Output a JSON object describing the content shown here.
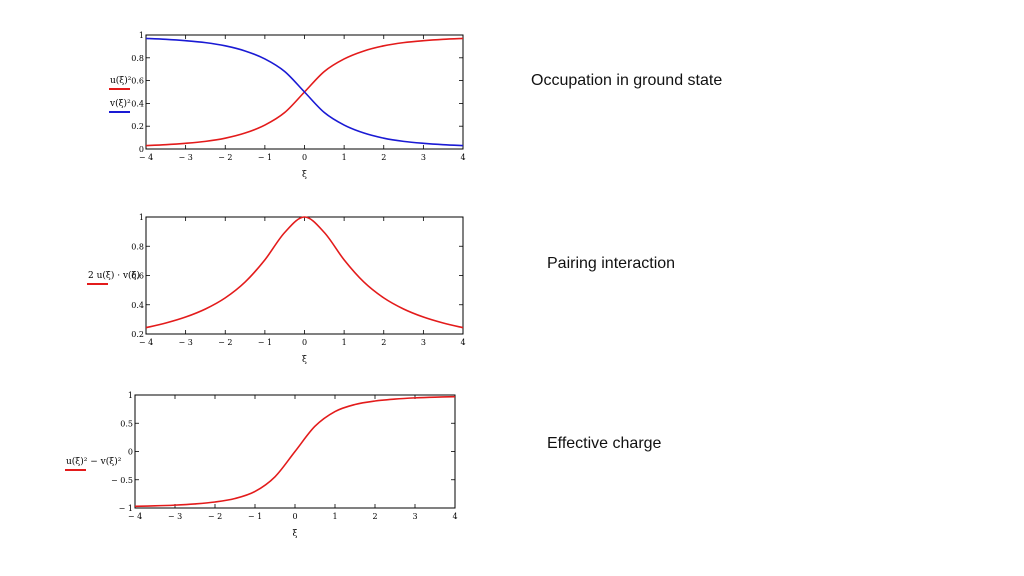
{
  "captions": {
    "chart1": "Occupation in ground state",
    "chart2": "Pairing interaction",
    "chart3": "Effective charge"
  },
  "colors": {
    "red": "#e31b1b",
    "blue": "#1a1ad4"
  },
  "chart_data": [
    {
      "type": "line",
      "title": "",
      "xlabel": "ξ",
      "ylabel_lines": [
        "u(ξ)²",
        "v(ξ)²"
      ],
      "xlim": [
        -4,
        4
      ],
      "ylim": [
        0,
        1
      ],
      "x_ticks": [
        -4,
        -3,
        -2,
        -1,
        0,
        1,
        2,
        3,
        4
      ],
      "x_tick_labels": [
        "− 4",
        "− 3",
        "− 2",
        "− 1",
        "0",
        "1",
        "2",
        "3",
        "4"
      ],
      "y_ticks": [
        0,
        0.2,
        0.4,
        0.6,
        0.8,
        1
      ],
      "y_tick_labels": [
        "0",
        "0.2",
        "0.4",
        "0.6",
        "0.8",
        "1"
      ],
      "series": [
        {
          "name": "u(ξ)²",
          "color": "red",
          "x": [
            -4,
            -3.5,
            -3,
            -2.5,
            -2,
            -1.5,
            -1,
            -0.5,
            0,
            0.5,
            1,
            1.5,
            2,
            2.5,
            3,
            3.5,
            4
          ],
          "y": [
            0.03,
            0.038,
            0.05,
            0.067,
            0.095,
            0.14,
            0.21,
            0.32,
            0.5,
            0.68,
            0.79,
            0.86,
            0.905,
            0.933,
            0.95,
            0.962,
            0.97
          ]
        },
        {
          "name": "v(ξ)²",
          "color": "blue",
          "x": [
            -4,
            -3.5,
            -3,
            -2.5,
            -2,
            -1.5,
            -1,
            -0.5,
            0,
            0.5,
            1,
            1.5,
            2,
            2.5,
            3,
            3.5,
            4
          ],
          "y": [
            0.97,
            0.962,
            0.95,
            0.933,
            0.905,
            0.86,
            0.79,
            0.68,
            0.5,
            0.32,
            0.21,
            0.14,
            0.095,
            0.067,
            0.05,
            0.038,
            0.03
          ]
        }
      ]
    },
    {
      "type": "line",
      "title": "",
      "xlabel": "ξ",
      "ylabel_lines": [
        "2 u(ξ) · v(ξ)"
      ],
      "xlim": [
        -4,
        4
      ],
      "ylim": [
        0.2,
        1
      ],
      "x_ticks": [
        -4,
        -3,
        -2,
        -1,
        0,
        1,
        2,
        3,
        4
      ],
      "x_tick_labels": [
        "− 4",
        "− 3",
        "− 2",
        "− 1",
        "0",
        "1",
        "2",
        "3",
        "4"
      ],
      "y_ticks": [
        0.2,
        0.4,
        0.6,
        0.8,
        1
      ],
      "y_tick_labels": [
        "0.2",
        "0.4",
        "0.6",
        "0.8",
        "1"
      ],
      "series": [
        {
          "name": "2 u(ξ) · v(ξ)",
          "color": "red",
          "x": [
            -4,
            -3.5,
            -3,
            -2.5,
            -2,
            -1.5,
            -1,
            -0.5,
            0,
            0.5,
            1,
            1.5,
            2,
            2.5,
            3,
            3.5,
            4
          ],
          "y": [
            0.243,
            0.275,
            0.316,
            0.371,
            0.447,
            0.555,
            0.707,
            0.894,
            1,
            0.894,
            0.707,
            0.555,
            0.447,
            0.371,
            0.316,
            0.275,
            0.243
          ]
        }
      ]
    },
    {
      "type": "line",
      "title": "",
      "xlabel": "ξ",
      "ylabel_lines": [
        "u(ξ)² − v(ξ)²"
      ],
      "xlim": [
        -4,
        4
      ],
      "ylim": [
        -1,
        1
      ],
      "x_ticks": [
        -4,
        -3,
        -2,
        -1,
        0,
        1,
        2,
        3,
        4
      ],
      "x_tick_labels": [
        "− 4",
        "− 3",
        "− 2",
        "− 1",
        "0",
        "1",
        "2",
        "3",
        "4"
      ],
      "y_ticks": [
        -1,
        -0.5,
        0,
        0.5,
        1
      ],
      "y_tick_labels": [
        "− 1",
        "− 0.5",
        "0",
        "0.5",
        "1"
      ],
      "series": [
        {
          "name": "u(ξ)² − v(ξ)²",
          "color": "red",
          "x": [
            -4,
            -3.5,
            -3,
            -2.5,
            -2,
            -1.5,
            -1,
            -0.5,
            0,
            0.5,
            1,
            1.5,
            2,
            2.5,
            3,
            3.5,
            4
          ],
          "y": [
            -0.97,
            -0.962,
            -0.949,
            -0.928,
            -0.894,
            -0.832,
            -0.707,
            -0.447,
            0,
            0.447,
            0.707,
            0.832,
            0.894,
            0.928,
            0.949,
            0.962,
            0.97
          ]
        }
      ]
    }
  ]
}
